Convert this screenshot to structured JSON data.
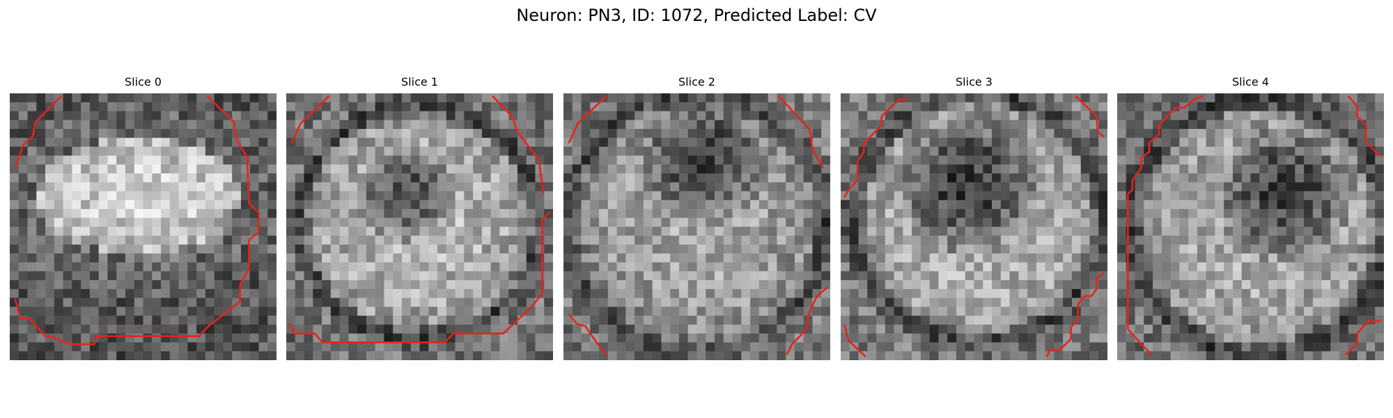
{
  "figure": {
    "title": "Neuron: PN3, ID: 1072, Predicted Label: CV"
  },
  "colors": {
    "contour": "#e8221c",
    "background": "#ffffff"
  },
  "panels": [
    {
      "title": "Slice 0"
    },
    {
      "title": "Slice 1"
    },
    {
      "title": "Slice 2"
    },
    {
      "title": "Slice 3"
    },
    {
      "title": "Slice 4"
    }
  ]
}
